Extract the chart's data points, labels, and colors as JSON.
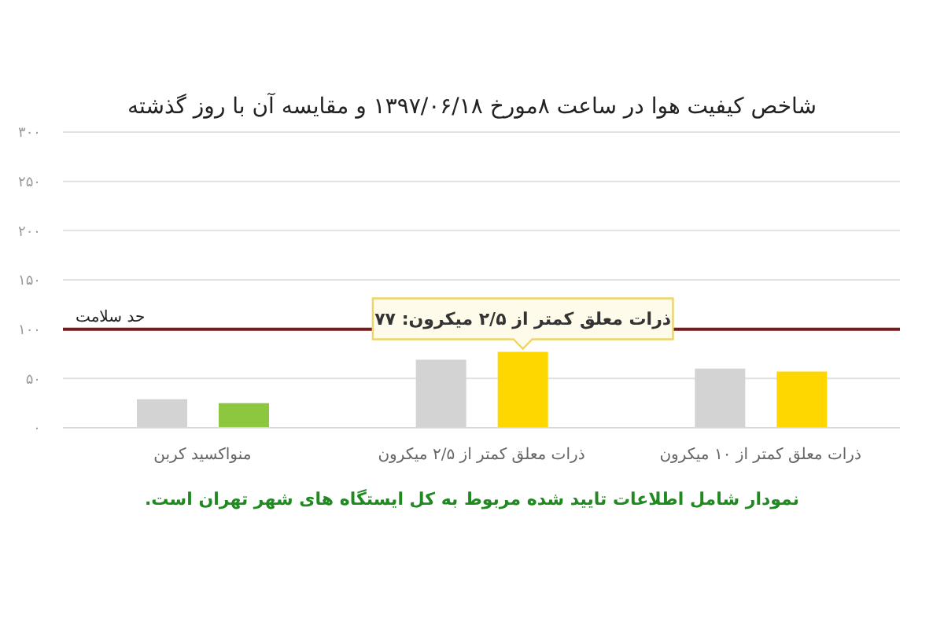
{
  "chart_data": {
    "type": "bar",
    "title": "شاخص کیفیت هوا در ساعت ۸مورخ ۱۳۹۷/۰۶/۱۸ و مقایسه آن با روز گذشته",
    "categories": [
      "منواکسید کربن",
      "ذرات معلق کمتر از ۲/۵ میکرون",
      "ذرات معلق کمتر از ۱۰ میکرون"
    ],
    "series": [
      {
        "color": "#d3d3d3",
        "values": [
          29,
          69,
          60
        ]
      },
      {
        "colors": [
          "#8dc63f",
          "#ffd700",
          "#ffd700"
        ],
        "values": [
          25,
          77,
          57
        ],
        "value_labels": [
          null,
          "ذرات معلق کمتر از ۲/۵ میکرون: ۷۷",
          null
        ]
      }
    ],
    "ylim": [
      0,
      300
    ],
    "yticks": [
      {
        "value": 0,
        "label": "۰"
      },
      {
        "value": 50,
        "label": "۵۰"
      },
      {
        "value": 100,
        "label": "۱۰۰"
      },
      {
        "value": 150,
        "label": "۱۵۰"
      },
      {
        "value": 200,
        "label": "۲۰۰"
      },
      {
        "value": 250,
        "label": "۲۵۰"
      },
      {
        "value": 300,
        "label": "۳۰۰"
      }
    ],
    "grid": "y",
    "ref_lines": [
      {
        "axis": "y",
        "value": 100,
        "label": "حد سلامت",
        "color": "#7a1a1c"
      }
    ],
    "annotations": [
      "نمودار شامل اطلاعات تایید شده مربوط به کل ایستگاه های شهر تهران است."
    ]
  }
}
